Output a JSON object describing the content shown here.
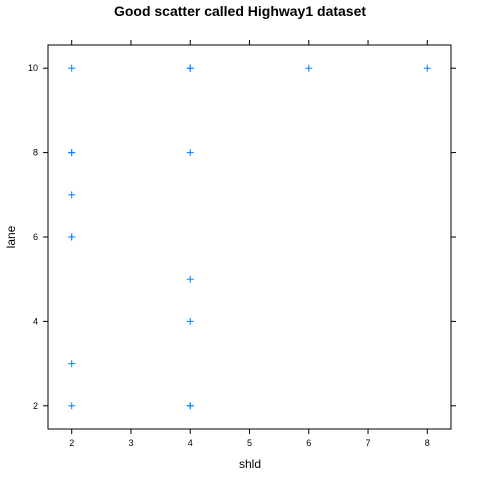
{
  "chart_data": {
    "type": "scatter",
    "title": "Good scatter called Highway1 dataset",
    "xlabel": "shld",
    "ylabel": "lane",
    "xlim": [
      1.6,
      8.4
    ],
    "ylim": [
      1.45,
      10.55
    ],
    "x_ticks": [
      {
        "value": 2,
        "label": "2"
      },
      {
        "value": 3,
        "label": "3"
      },
      {
        "value": 4,
        "label": "4"
      },
      {
        "value": 5,
        "label": "5"
      },
      {
        "value": 6,
        "label": "6"
      },
      {
        "value": 7,
        "label": "7"
      },
      {
        "value": 8,
        "label": "8"
      }
    ],
    "y_ticks": [
      {
        "value": 2,
        "label": "2"
      },
      {
        "value": 4,
        "label": "4"
      },
      {
        "value": 6,
        "label": "6"
      },
      {
        "value": 8,
        "label": "8"
      },
      {
        "value": 10,
        "label": "10"
      }
    ],
    "grid": false,
    "legend": "none",
    "marker": "plus",
    "marker_color": "#0080ff",
    "points": [
      {
        "x": 2,
        "y": 10
      },
      {
        "x": 2,
        "y": 8
      },
      {
        "x": 2,
        "y": 8
      },
      {
        "x": 2,
        "y": 7
      },
      {
        "x": 2,
        "y": 6
      },
      {
        "x": 2,
        "y": 6
      },
      {
        "x": 2,
        "y": 3
      },
      {
        "x": 2,
        "y": 2
      },
      {
        "x": 4,
        "y": 10
      },
      {
        "x": 4,
        "y": 10
      },
      {
        "x": 4,
        "y": 8
      },
      {
        "x": 4,
        "y": 5
      },
      {
        "x": 4,
        "y": 4
      },
      {
        "x": 4,
        "y": 2
      },
      {
        "x": 4,
        "y": 2
      },
      {
        "x": 6,
        "y": 10
      },
      {
        "x": 8,
        "y": 10
      }
    ]
  }
}
